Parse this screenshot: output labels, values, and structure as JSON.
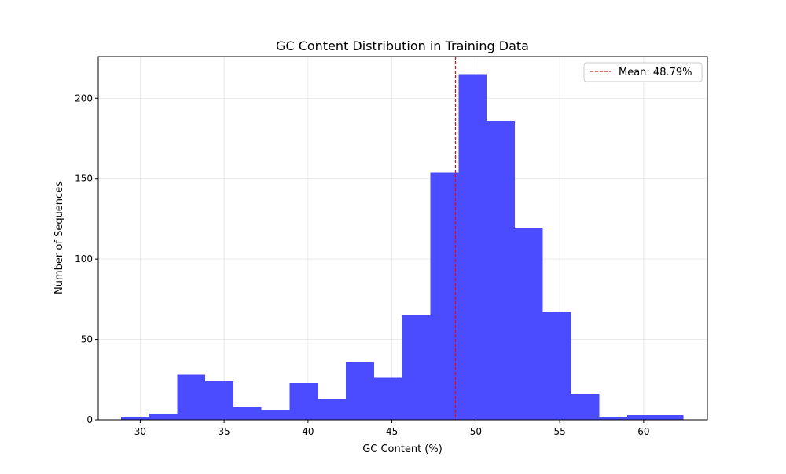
{
  "chart_data": {
    "type": "bar",
    "title": "GC Content Distribution in Training Data",
    "xlabel": "GC Content (%)",
    "ylabel": "Number of Sequences",
    "xlim": [
      27.5,
      63.8
    ],
    "ylim": [
      0,
      226
    ],
    "xticks": [
      30,
      35,
      40,
      45,
      50,
      55,
      60
    ],
    "yticks": [
      0,
      50,
      100,
      150,
      200
    ],
    "grid": true,
    "bar_color": "#4b4bff",
    "bin_edges": [
      28.85,
      30.53,
      32.2,
      33.88,
      35.56,
      37.23,
      38.91,
      40.58,
      42.26,
      43.94,
      45.61,
      47.29,
      48.97,
      50.64,
      52.32,
      53.99,
      55.67,
      57.35,
      59.02,
      60.7,
      62.37
    ],
    "values": [
      2,
      4,
      28,
      24,
      8,
      6,
      23,
      13,
      36,
      26,
      65,
      154,
      215,
      186,
      119,
      67,
      16,
      2,
      3,
      3
    ],
    "mean_line": {
      "x": 48.79,
      "color": "#ff0000",
      "style": "dashed"
    },
    "legend": {
      "position": "top-right",
      "entries": [
        {
          "label": "Mean: 48.79%",
          "color": "#ff0000",
          "style": "dashed"
        }
      ]
    }
  }
}
